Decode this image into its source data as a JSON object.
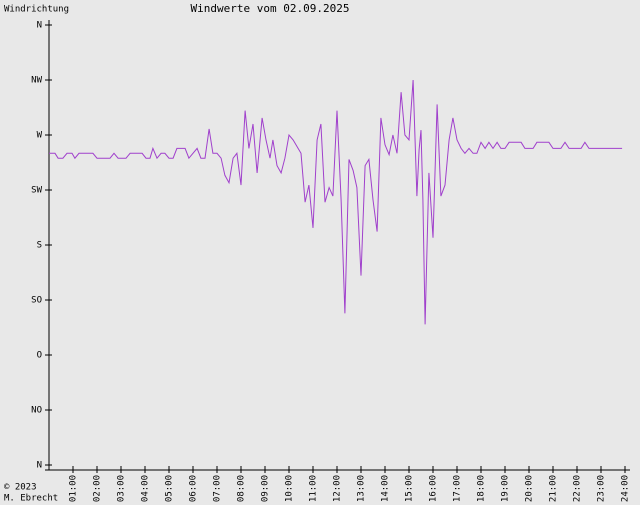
{
  "chart_data": {
    "type": "line",
    "title": "Windwerte vom 02.09.2025",
    "y_label": "Windrichtung",
    "footer": [
      "© 2023",
      "M. Ebrecht"
    ],
    "color": "#a040cc",
    "xlim": [
      0,
      24
    ],
    "xticks": [
      {
        "value": 1,
        "label": "01:00"
      },
      {
        "value": 2,
        "label": "02:00"
      },
      {
        "value": 3,
        "label": "03:00"
      },
      {
        "value": 4,
        "label": "04:00"
      },
      {
        "value": 5,
        "label": "05:00"
      },
      {
        "value": 6,
        "label": "06:00"
      },
      {
        "value": 7,
        "label": "07:00"
      },
      {
        "value": 8,
        "label": "08:00"
      },
      {
        "value": 9,
        "label": "09:00"
      },
      {
        "value": 10,
        "label": "10:00"
      },
      {
        "value": 11,
        "label": "11:00"
      },
      {
        "value": 12,
        "label": "12:00"
      },
      {
        "value": 13,
        "label": "13:00"
      },
      {
        "value": 14,
        "label": "14:00"
      },
      {
        "value": 15,
        "label": "15:00"
      },
      {
        "value": 16,
        "label": "16:00"
      },
      {
        "value": 17,
        "label": "17:00"
      },
      {
        "value": 18,
        "label": "18:00"
      },
      {
        "value": 19,
        "label": "19:00"
      },
      {
        "value": 20,
        "label": "20:00"
      },
      {
        "value": 21,
        "label": "21:00"
      },
      {
        "value": 22,
        "label": "22:00"
      },
      {
        "value": 23,
        "label": "23:00"
      },
      {
        "value": 24,
        "label": "24:00"
      }
    ],
    "ylim": [
      0,
      360
    ],
    "yticks": [
      {
        "value": 360,
        "label": "N"
      },
      {
        "value": 315,
        "label": "NW"
      },
      {
        "value": 270,
        "label": "W"
      },
      {
        "value": 225,
        "label": "SW"
      },
      {
        "value": 180,
        "label": "S"
      },
      {
        "value": 135,
        "label": "SO"
      },
      {
        "value": 90,
        "label": "O"
      },
      {
        "value": 45,
        "label": "NO"
      },
      {
        "value": 0,
        "label": "N"
      }
    ],
    "x": [
      0,
      0.25,
      0.38,
      0.58,
      0.75,
      0.96,
      1.08,
      1.25,
      1.83,
      2,
      2.54,
      2.71,
      2.88,
      3.21,
      3.38,
      3.88,
      4.04,
      4.21,
      4.33,
      4.5,
      4.67,
      4.83,
      5,
      5.17,
      5.33,
      5.67,
      5.83,
      6.17,
      6.33,
      6.5,
      6.67,
      6.83,
      7,
      7.17,
      7.33,
      7.5,
      7.67,
      7.83,
      8,
      8.17,
      8.33,
      8.5,
      8.67,
      8.88,
      9.04,
      9.21,
      9.33,
      9.5,
      9.67,
      9.83,
      10,
      10.17,
      10.38,
      10.5,
      10.67,
      10.83,
      11,
      11.17,
      11.33,
      11.5,
      11.67,
      11.83,
      12,
      12.17,
      12.33,
      12.5,
      12.67,
      12.83,
      13,
      13.17,
      13.33,
      13.5,
      13.67,
      13.83,
      14,
      14.17,
      14.33,
      14.5,
      14.67,
      14.83,
      15,
      15.17,
      15.33,
      15.42,
      15.5,
      15.58,
      15.67,
      15.83,
      16,
      16.17,
      16.33,
      16.5,
      16.67,
      16.83,
      17,
      17.17,
      17.33,
      17.5,
      17.67,
      17.83,
      18,
      18.17,
      18.33,
      18.5,
      18.67,
      18.83,
      19,
      19.17,
      19.67,
      19.83,
      20.17,
      20.33,
      20.83,
      21,
      21.33,
      21.5,
      21.67,
      22.17,
      22.33,
      22.5,
      23.88
    ],
    "values": [
      255,
      255,
      251,
      251,
      255,
      255,
      251,
      255,
      255,
      251,
      251,
      255,
      251,
      251,
      255,
      255,
      251,
      251,
      259,
      251,
      255,
      255,
      251,
      251,
      259,
      259,
      251,
      259,
      251,
      251,
      275,
      255,
      255,
      251,
      237,
      231,
      251,
      255,
      229,
      290,
      259,
      279,
      239,
      284,
      266,
      251,
      266,
      245,
      239,
      251,
      270,
      266,
      259,
      255,
      215,
      229,
      194,
      266,
      279,
      215,
      227,
      220,
      290,
      217,
      124,
      250,
      241,
      227,
      155,
      245,
      250,
      217,
      191,
      284,
      262,
      254,
      270,
      255,
      305,
      270,
      266,
      315,
      220,
      258,
      274,
      217,
      115,
      239,
      186,
      295,
      220,
      229,
      266,
      284,
      266,
      259,
      255,
      259,
      255,
      255,
      264,
      259,
      264,
      259,
      264,
      259,
      259,
      264,
      264,
      259,
      259,
      264,
      264,
      259,
      259,
      264,
      259,
      259,
      264,
      259,
      259
    ]
  }
}
